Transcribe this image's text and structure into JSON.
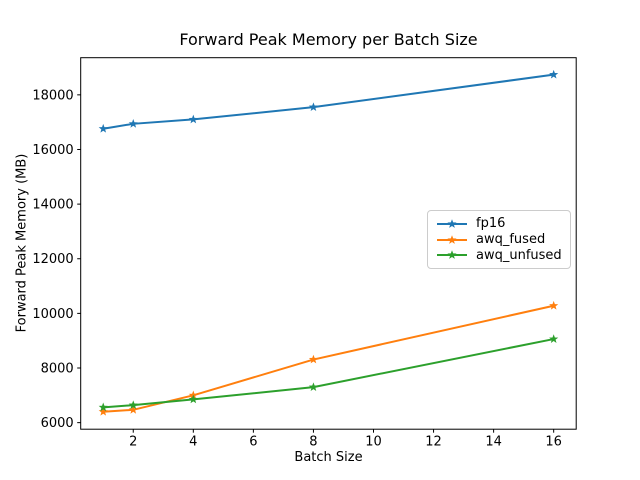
{
  "figure": {
    "background": "#ffffff",
    "text_color": "#000000",
    "spine_color": "#000000"
  },
  "chart_data": {
    "type": "line",
    "title": "Forward Peak Memory per Batch Size",
    "xlabel": "Batch Size",
    "ylabel": "Forward Peak Memory (MB)",
    "x": [
      1,
      2,
      4,
      8,
      16
    ],
    "series": [
      {
        "name": "fp16",
        "color": "#1f77b4",
        "marker": "star",
        "values": [
          16760,
          16940,
          17100,
          17550,
          18740
        ]
      },
      {
        "name": "awq_fused",
        "color": "#ff7f0e",
        "marker": "star",
        "values": [
          6400,
          6470,
          7000,
          8310,
          10280
        ]
      },
      {
        "name": "awq_unfused",
        "color": "#2ca02c",
        "marker": "star",
        "values": [
          6560,
          6640,
          6850,
          7300,
          9060
        ]
      }
    ],
    "xticks": [
      2,
      4,
      6,
      8,
      10,
      12,
      14,
      16
    ],
    "yticks": [
      6000,
      8000,
      10000,
      12000,
      14000,
      16000,
      18000
    ],
    "xlim": [
      0.25,
      16.75
    ],
    "ylim": [
      5760,
      19360
    ],
    "grid": false,
    "legend_position": "center-right"
  }
}
